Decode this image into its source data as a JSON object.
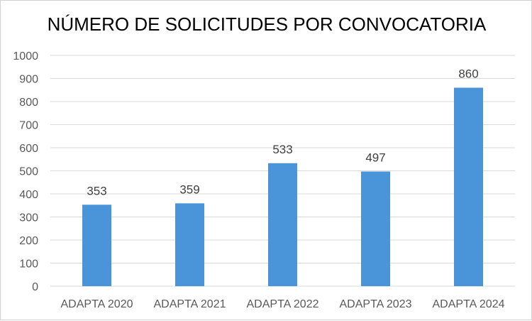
{
  "chart_data": {
    "type": "bar",
    "title": "NÚMERO DE SOLICITUDES POR CONVOCATORIA",
    "categories": [
      "ADAPTA 2020",
      "ADAPTA 2021",
      "ADAPTA 2022",
      "ADAPTA 2023",
      "ADAPTA 2024"
    ],
    "values": [
      353,
      359,
      533,
      497,
      860
    ],
    "data_labels": [
      "353",
      "359",
      "533",
      "497",
      "860"
    ],
    "ylim": [
      0,
      1000
    ],
    "yticks": [
      0,
      100,
      200,
      300,
      400,
      500,
      600,
      700,
      800,
      900,
      1000
    ],
    "grid": true,
    "legend": "none",
    "bar_color": "#4a94da"
  }
}
